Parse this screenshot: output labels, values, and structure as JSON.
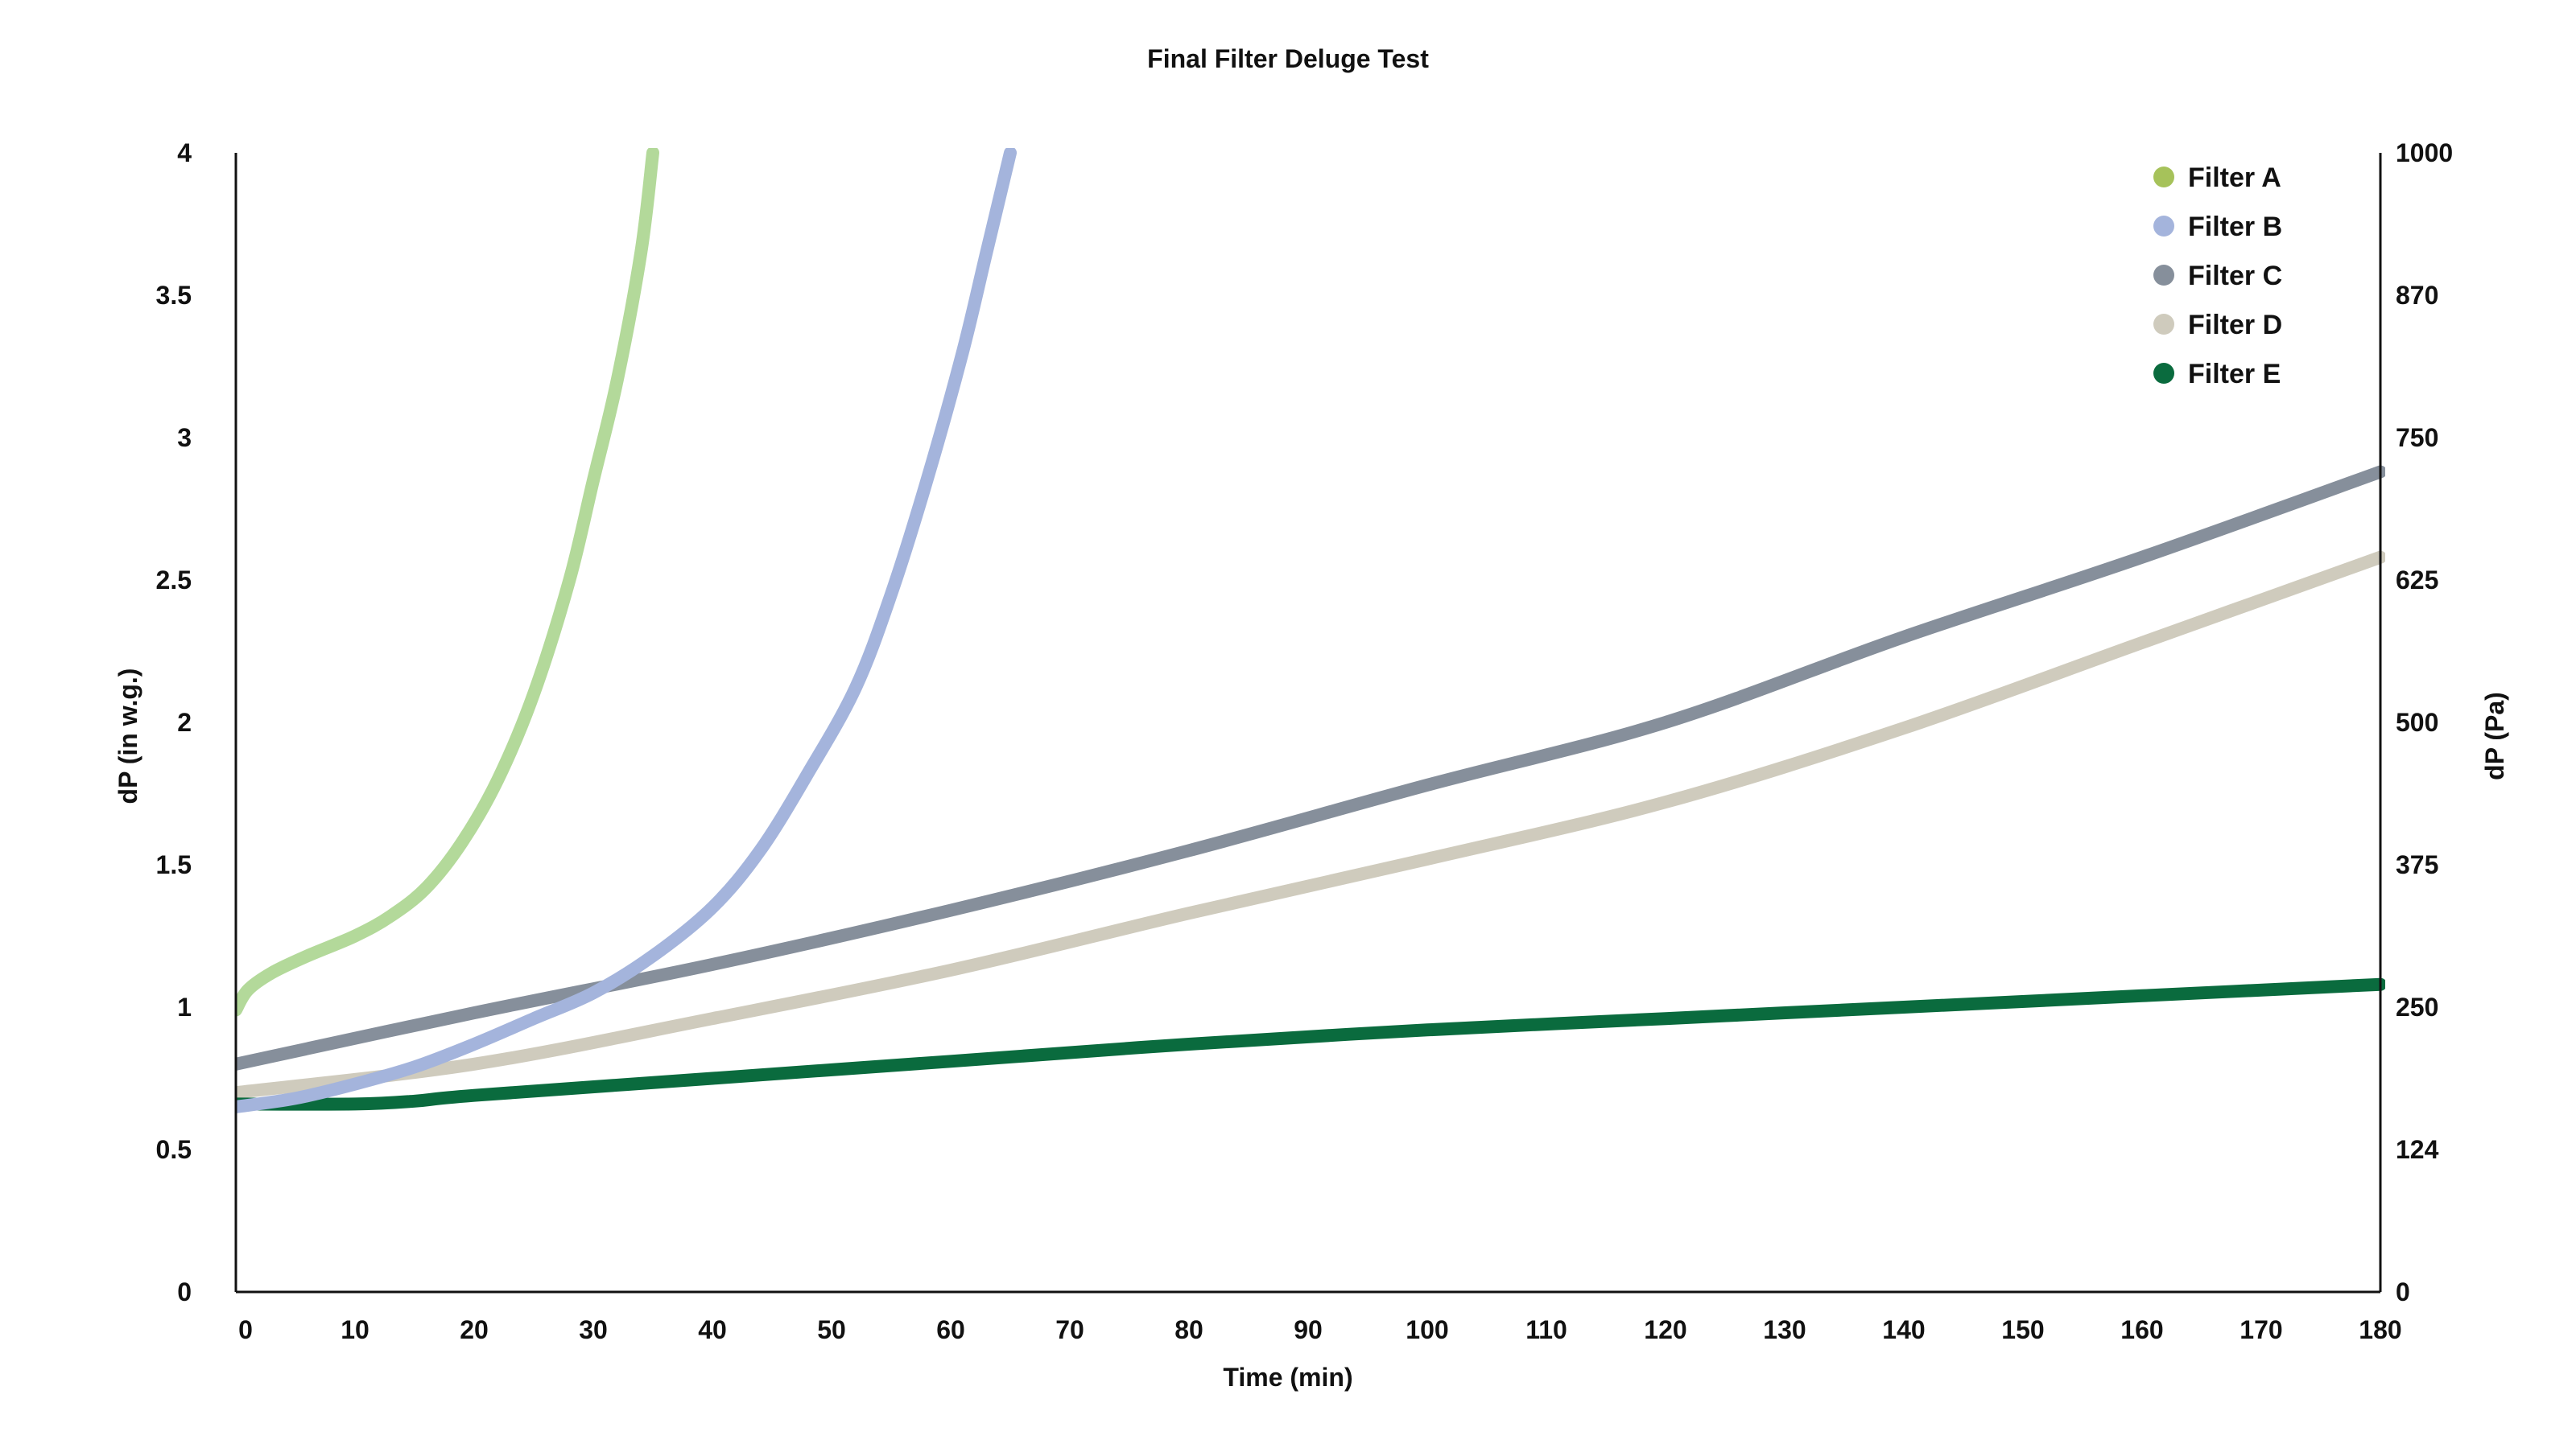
{
  "chart_data": {
    "type": "line",
    "title": "Final Filter Deluge Test",
    "xlabel": "Time (min)",
    "ylabel_left": "dP (in w.g.)",
    "ylabel_right": "dP (Pa)",
    "xlim": [
      0,
      180
    ],
    "ylim": [
      0,
      4
    ],
    "x_ticks": [
      "0",
      "10",
      "20",
      "30",
      "40",
      "50",
      "60",
      "70",
      "80",
      "90",
      "100",
      "110",
      "120",
      "130",
      "140",
      "150",
      "160",
      "170",
      "180"
    ],
    "y_ticks_left": [
      "0",
      "0.5",
      "1",
      "1.5",
      "2",
      "2.5",
      "3",
      "3.5",
      "4"
    ],
    "y_ticks_right": [
      "0",
      "124",
      "250",
      "375",
      "500",
      "625",
      "750",
      "870",
      "1000"
    ],
    "grid": false,
    "legend_position": "top-right",
    "series": [
      {
        "name": "Filter A",
        "color": "#b3d99a",
        "marker_color": "#a6c25a",
        "points": [
          [
            0,
            0.99
          ],
          [
            1,
            1.06
          ],
          [
            3,
            1.12
          ],
          [
            6,
            1.18
          ],
          [
            10,
            1.25
          ],
          [
            13,
            1.32
          ],
          [
            16,
            1.42
          ],
          [
            19,
            1.58
          ],
          [
            22,
            1.8
          ],
          [
            25,
            2.1
          ],
          [
            28,
            2.5
          ],
          [
            30,
            2.85
          ],
          [
            32,
            3.2
          ],
          [
            34,
            3.65
          ],
          [
            35,
            4.0
          ]
        ]
      },
      {
        "name": "Filter B",
        "color": "#a4b4dc",
        "marker_color": "#a4b4dc",
        "points": [
          [
            0,
            0.65
          ],
          [
            5,
            0.68
          ],
          [
            10,
            0.73
          ],
          [
            15,
            0.79
          ],
          [
            20,
            0.87
          ],
          [
            25,
            0.96
          ],
          [
            30,
            1.05
          ],
          [
            35,
            1.18
          ],
          [
            40,
            1.35
          ],
          [
            44,
            1.55
          ],
          [
            48,
            1.82
          ],
          [
            52,
            2.12
          ],
          [
            55,
            2.45
          ],
          [
            58,
            2.85
          ],
          [
            61,
            3.3
          ],
          [
            63,
            3.65
          ],
          [
            65,
            4.0
          ]
        ]
      },
      {
        "name": "Filter C",
        "color": "#868f9b",
        "marker_color": "#868f9b",
        "points": [
          [
            0,
            0.8
          ],
          [
            20,
            0.98
          ],
          [
            40,
            1.15
          ],
          [
            60,
            1.34
          ],
          [
            80,
            1.55
          ],
          [
            100,
            1.78
          ],
          [
            120,
            2.0
          ],
          [
            140,
            2.3
          ],
          [
            160,
            2.58
          ],
          [
            180,
            2.88
          ]
        ]
      },
      {
        "name": "Filter D",
        "color": "#cfcbbd",
        "marker_color": "#cfcbbd",
        "points": [
          [
            0,
            0.7
          ],
          [
            20,
            0.8
          ],
          [
            40,
            0.96
          ],
          [
            60,
            1.13
          ],
          [
            80,
            1.33
          ],
          [
            100,
            1.52
          ],
          [
            120,
            1.72
          ],
          [
            140,
            1.98
          ],
          [
            160,
            2.28
          ],
          [
            180,
            2.58
          ]
        ]
      },
      {
        "name": "Filter E",
        "color": "#0a6b3e",
        "marker_color": "#0a6b3e",
        "points": [
          [
            0,
            0.66
          ],
          [
            10,
            0.66
          ],
          [
            15,
            0.67
          ],
          [
            20,
            0.69
          ],
          [
            40,
            0.75
          ],
          [
            60,
            0.81
          ],
          [
            80,
            0.87
          ],
          [
            100,
            0.92
          ],
          [
            120,
            0.96
          ],
          [
            140,
            1.0
          ],
          [
            160,
            1.04
          ],
          [
            180,
            1.08
          ]
        ]
      }
    ]
  }
}
